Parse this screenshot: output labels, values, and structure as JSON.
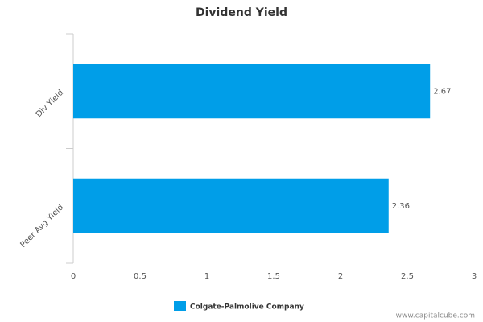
{
  "chart_data": {
    "type": "hbar",
    "title": "Dividend Yield",
    "categories": [
      "Div Yield",
      "Peer Avg Yield"
    ],
    "series": [
      {
        "name": "Colgate-Palmolive Company",
        "color": "#009ee8",
        "values": [
          2.67,
          2.36
        ]
      }
    ],
    "xlim": [
      0,
      3
    ],
    "xticks": [
      0,
      0.5,
      1,
      1.5,
      2,
      2.5,
      3
    ],
    "legend_position": "bottom",
    "grid": false,
    "watermark": "www.capitalcube.com"
  }
}
